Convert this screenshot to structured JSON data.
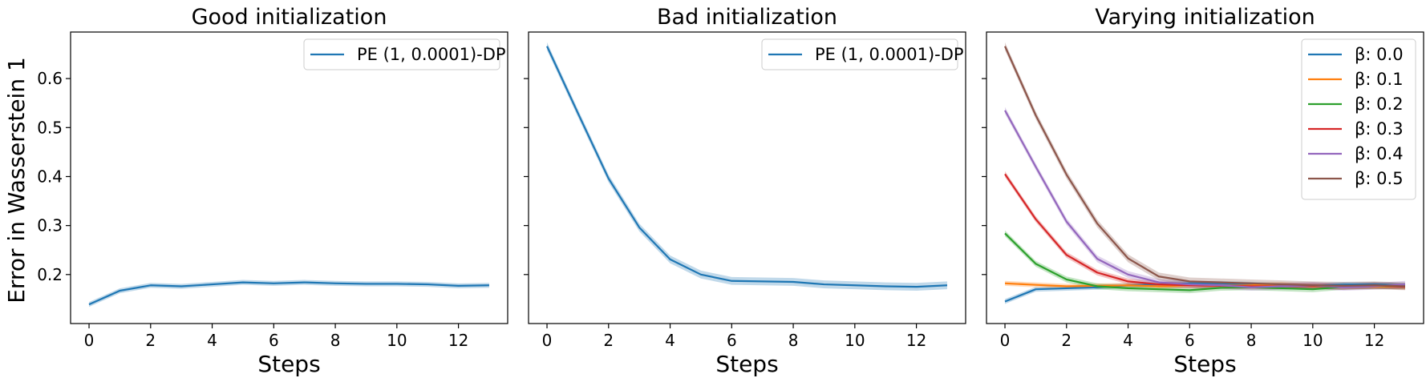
{
  "figure": {
    "ylabel": "Error in Wasserstein 1"
  },
  "chart_data": [
    {
      "type": "line",
      "title": "Good initialization",
      "xlabel": "Steps",
      "ylabel": "Error in Wasserstein 1",
      "xlim": [
        -0.6,
        13.6
      ],
      "ylim": [
        0.1,
        0.695
      ],
      "xticks": [
        0,
        2,
        4,
        6,
        8,
        10,
        12
      ],
      "yticks": [
        0.2,
        0.3,
        0.4,
        0.5,
        0.6
      ],
      "legend_position": "top-right",
      "series": [
        {
          "name": "PE (1, 0.0001)-DP",
          "color": "#1f77b4",
          "x": [
            0,
            1,
            2,
            3,
            4,
            5,
            6,
            7,
            8,
            9,
            10,
            11,
            12,
            13
          ],
          "y": [
            0.139,
            0.167,
            0.178,
            0.176,
            0.18,
            0.184,
            0.182,
            0.184,
            0.182,
            0.181,
            0.181,
            0.18,
            0.177,
            0.178
          ],
          "band": 0.005
        }
      ]
    },
    {
      "type": "line",
      "title": "Bad initialization",
      "xlabel": "Steps",
      "ylabel": "",
      "xlim": [
        -0.6,
        13.6
      ],
      "ylim": [
        0.1,
        0.695
      ],
      "xticks": [
        0,
        2,
        4,
        6,
        8,
        10,
        12
      ],
      "yticks": [
        0.2,
        0.3,
        0.4,
        0.5,
        0.6
      ],
      "legend_position": "top-right",
      "series": [
        {
          "name": "PE (1, 0.0001)-DP",
          "color": "#1f77b4",
          "x": [
            0,
            1,
            2,
            3,
            4,
            5,
            6,
            7,
            8,
            9,
            10,
            11,
            12,
            13
          ],
          "y": [
            0.666,
            0.53,
            0.396,
            0.296,
            0.231,
            0.2,
            0.187,
            0.186,
            0.185,
            0.18,
            0.178,
            0.176,
            0.175,
            0.178
          ],
          "band": 0.008
        }
      ]
    },
    {
      "type": "line",
      "title": "Varying initialization",
      "xlabel": "Steps",
      "ylabel": "",
      "xlim": [
        -0.6,
        13.6
      ],
      "ylim": [
        0.1,
        0.695
      ],
      "xticks": [
        0,
        2,
        4,
        6,
        8,
        10,
        12
      ],
      "yticks": [
        0.2,
        0.3,
        0.4,
        0.5,
        0.6
      ],
      "legend_position": "top-right",
      "series": [
        {
          "name": "β: 0.0",
          "color": "#1f77b4",
          "x": [
            0,
            1,
            2,
            3,
            4,
            5,
            6,
            7,
            8,
            9,
            10,
            11,
            12,
            13
          ],
          "y": [
            0.145,
            0.17,
            0.172,
            0.174,
            0.178,
            0.18,
            0.182,
            0.182,
            0.18,
            0.178,
            0.177,
            0.18,
            0.18,
            0.178
          ],
          "band": 0.005
        },
        {
          "name": "β: 0.1",
          "color": "#ff7f0e",
          "x": [
            0,
            1,
            2,
            3,
            4,
            5,
            6,
            7,
            8,
            9,
            10,
            11,
            12,
            13
          ],
          "y": [
            0.182,
            0.179,
            0.176,
            0.177,
            0.178,
            0.176,
            0.178,
            0.177,
            0.178,
            0.18,
            0.176,
            0.177,
            0.175,
            0.176
          ],
          "band": 0.005
        },
        {
          "name": "β: 0.2",
          "color": "#2ca02c",
          "x": [
            0,
            1,
            2,
            3,
            4,
            5,
            6,
            7,
            8,
            9,
            10,
            11,
            12,
            13
          ],
          "y": [
            0.284,
            0.222,
            0.19,
            0.176,
            0.172,
            0.17,
            0.168,
            0.173,
            0.174,
            0.172,
            0.17,
            0.175,
            0.177,
            0.176
          ],
          "band": 0.006
        },
        {
          "name": "β: 0.3",
          "color": "#d62728",
          "x": [
            0,
            1,
            2,
            3,
            4,
            5,
            6,
            7,
            8,
            9,
            10,
            11,
            12,
            13
          ],
          "y": [
            0.405,
            0.313,
            0.24,
            0.204,
            0.186,
            0.18,
            0.178,
            0.177,
            0.176,
            0.176,
            0.177,
            0.175,
            0.178,
            0.175
          ],
          "band": 0.006
        },
        {
          "name": "β: 0.4",
          "color": "#9467bd",
          "x": [
            0,
            1,
            2,
            3,
            4,
            5,
            6,
            7,
            8,
            9,
            10,
            11,
            12,
            13
          ],
          "y": [
            0.535,
            0.42,
            0.308,
            0.232,
            0.2,
            0.184,
            0.18,
            0.178,
            0.174,
            0.176,
            0.178,
            0.174,
            0.176,
            0.18
          ],
          "band": 0.007
        },
        {
          "name": "β: 0.5",
          "color": "#8c564b",
          "x": [
            0,
            1,
            2,
            3,
            4,
            5,
            6,
            7,
            8,
            9,
            10,
            11,
            12,
            13
          ],
          "y": [
            0.666,
            0.525,
            0.404,
            0.304,
            0.233,
            0.196,
            0.186,
            0.184,
            0.182,
            0.18,
            0.178,
            0.177,
            0.178,
            0.176
          ],
          "band": 0.008
        }
      ]
    }
  ]
}
